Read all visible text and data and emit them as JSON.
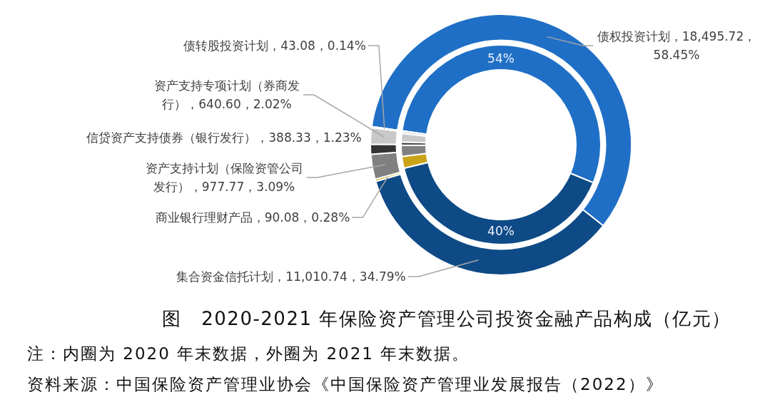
{
  "chart_data": [
    {
      "type": "donut",
      "title": "图　2020-2021 年保险资产管理公司投资金融产品构成（亿元）",
      "categories": [
        "债权投资计划",
        "集合资金信托计划",
        "商业银行理财产品",
        "资产支持计划（保险资管公司发行）",
        "信贷资产支持债券（银行发行）",
        "资产支持专项计划（券商发行）",
        "债转股投资计划"
      ],
      "values": [
        18495.72,
        11010.74,
        90.08,
        977.77,
        388.33,
        640.6,
        43.08
      ],
      "value_labels": [
        "18,495.72，58.45%",
        "11,010.74，34.79%",
        "90.08，0.28%",
        "977.77，3.09%",
        "388.33，1.23%",
        "640.60，2.02%",
        "43.08，0.14%"
      ],
      "colors": [
        "#1f6fc6",
        "#0e4a86",
        "#c9a418",
        "#808080",
        "#333333",
        "#c8c8c8",
        "#d9d9d9"
      ],
      "annotations": [
        "注：内圈为 2020 年末数据，外圈为 2021 年末数据。",
        "资料来源：中国保险资产管理业协会《中国保险资产管理业发展报告（2022）》"
      ]
    },
    {
      "type": "donut",
      "categories": [
        null,
        null,
        null,
        null,
        null,
        null,
        null
      ],
      "values": [
        54,
        40,
        1.9,
        1.8,
        0.5,
        1.4,
        0.4
      ],
      "value_labels": [
        "54%",
        "40%",
        null,
        null,
        null,
        null,
        null
      ],
      "colors": [
        "#1f6fc6",
        "#0e4a86",
        "#c9a418",
        "#808080",
        "#333333",
        "#c8c8c8",
        "#d9d9d9"
      ]
    }
  ]
}
